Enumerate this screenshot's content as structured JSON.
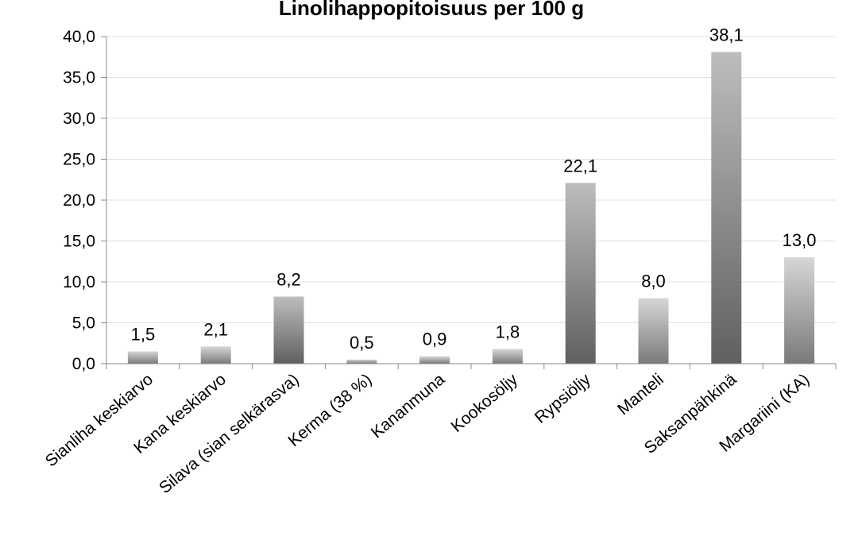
{
  "chart_data": {
    "type": "bar",
    "title": "Linolihappopitoisuus per 100 g",
    "xlabel": "",
    "ylabel": "",
    "ylim": [
      0,
      40
    ],
    "yticks": [
      "0,0",
      "5,0",
      "10,0",
      "15,0",
      "20,0",
      "25,0",
      "30,0",
      "35,0",
      "40,0"
    ],
    "grid": true,
    "categories": [
      "Sianliha keskiarvo",
      "Kana keskiarvo",
      "Silava (sian selkärasva)",
      "Kerma (38 %)",
      "Kananmuna",
      "Kookosöljy",
      "Rypsiöljy",
      "Manteli",
      "Saksanpähkinä",
      "Margariini (KA)"
    ],
    "values": [
      1.5,
      2.1,
      8.2,
      0.5,
      0.9,
      1.8,
      22.1,
      8.0,
      38.1,
      13.0
    ],
    "value_labels": [
      "1,5",
      "2,1",
      "8,2",
      "0,5",
      "0,9",
      "1,8",
      "22,1",
      "8,0",
      "38,1",
      "13,0"
    ],
    "gradient_variant": [
      "light",
      "light",
      "dark",
      "light",
      "light",
      "light",
      "dark",
      "light",
      "dark",
      "light"
    ]
  }
}
